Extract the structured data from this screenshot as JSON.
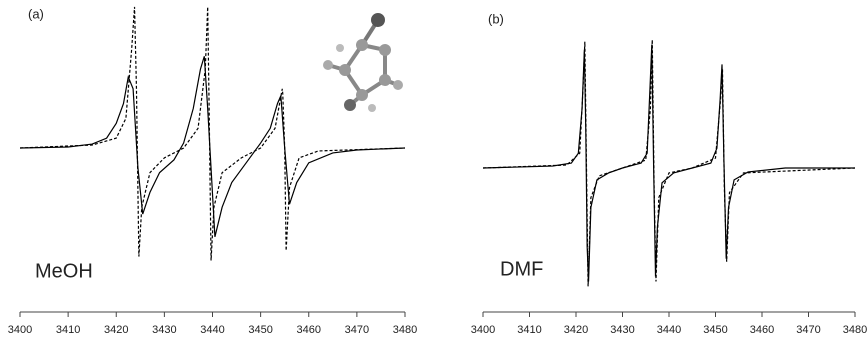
{
  "chart_data": [
    {
      "type": "line",
      "label": "(a)",
      "annotation": "MeOH",
      "xlim": [
        3400,
        3480
      ],
      "xticks": [
        3400,
        3410,
        3420,
        3430,
        3440,
        3450,
        3460,
        3470,
        3480
      ],
      "ylim": [
        -150,
        150
      ],
      "series": [
        {
          "color": "#000000",
          "dashed": false,
          "x": [
            3400,
            3410,
            3415,
            3418,
            3420,
            3421.5,
            3422.5,
            3423.5,
            3424.5,
            3425.5,
            3427,
            3429,
            3432,
            3434,
            3436,
            3437.5,
            3438.3,
            3439,
            3440.5,
            3442,
            3444,
            3447,
            3450,
            3452,
            3453.5,
            3454.2,
            3455,
            3456,
            3457.5,
            3460,
            3465,
            3470,
            3480
          ],
          "values": [
            0,
            1,
            4,
            10,
            25,
            45,
            72,
            60,
            -20,
            -67,
            -45,
            -25,
            -12,
            5,
            40,
            80,
            93,
            40,
            -90,
            -60,
            -35,
            -15,
            5,
            20,
            45,
            53,
            0,
            -57,
            -35,
            -15,
            -5,
            -2,
            0
          ]
        },
        {
          "color": "#000000",
          "dashed": true,
          "x": [
            3400,
            3415,
            3420,
            3422,
            3423.2,
            3423.8,
            3424.2,
            3424.7,
            3425.3,
            3427,
            3430,
            3434,
            3437,
            3438.5,
            3439,
            3439.3,
            3439.7,
            3440.3,
            3442,
            3446,
            3450,
            3453,
            3454.5,
            3454.6,
            3455.0,
            3455.3,
            3456,
            3458,
            3462,
            3480
          ],
          "values": [
            0,
            3,
            10,
            30,
            100,
            143,
            60,
            -110,
            -60,
            -25,
            -10,
            0,
            20,
            80,
            143,
            40,
            -114,
            -60,
            -25,
            -10,
            0,
            20,
            60,
            55,
            0,
            -104,
            -40,
            -10,
            -3,
            0
          ]
        }
      ]
    },
    {
      "type": "line",
      "label": "(b)",
      "annotation": "DMF",
      "xlim": [
        3400,
        3480
      ],
      "xticks": [
        3400,
        3410,
        3420,
        3430,
        3440,
        3450,
        3460,
        3470,
        3480
      ],
      "ylim": [
        -150,
        150
      ],
      "series": [
        {
          "color": "#000000",
          "dashed": false,
          "x": [
            3400,
            3415,
            3419,
            3420.5,
            3421.3,
            3421.8,
            3422.1,
            3422.4,
            3422.7,
            3423.2,
            3424.5,
            3427,
            3430,
            3434,
            3435.3,
            3435.9,
            3436.3,
            3436.7,
            3437.1,
            3437.5,
            3438.5,
            3441,
            3445,
            3449,
            3450.3,
            3451,
            3451.4,
            3451.8,
            3452.3,
            3452.8,
            3454,
            3457,
            3465,
            3480
          ],
          "values": [
            0,
            2,
            5,
            15,
            60,
            120,
            40,
            -80,
            -115,
            -40,
            -12,
            -5,
            0,
            5,
            15,
            80,
            125,
            0,
            -110,
            -60,
            -15,
            -5,
            0,
            5,
            20,
            70,
            105,
            10,
            -92,
            -40,
            -12,
            -4,
            0,
            0
          ]
        },
        {
          "color": "#000000",
          "dashed": true,
          "x": [
            3400,
            3418,
            3420.8,
            3421.5,
            3421.9,
            3422.2,
            3422.6,
            3423.2,
            3425,
            3430,
            3435,
            3436,
            3436.4,
            3436.8,
            3437.2,
            3437.8,
            3440,
            3445,
            3450,
            3451.1,
            3451.5,
            3451.9,
            3452.4,
            3453,
            3456,
            3480
          ],
          "values": [
            0,
            3,
            15,
            80,
            128,
            20,
            -120,
            -30,
            -8,
            0,
            8,
            60,
            130,
            -20,
            -115,
            -30,
            -5,
            0,
            10,
            70,
            100,
            -20,
            -95,
            -25,
            -5,
            0
          ]
        }
      ]
    }
  ]
}
